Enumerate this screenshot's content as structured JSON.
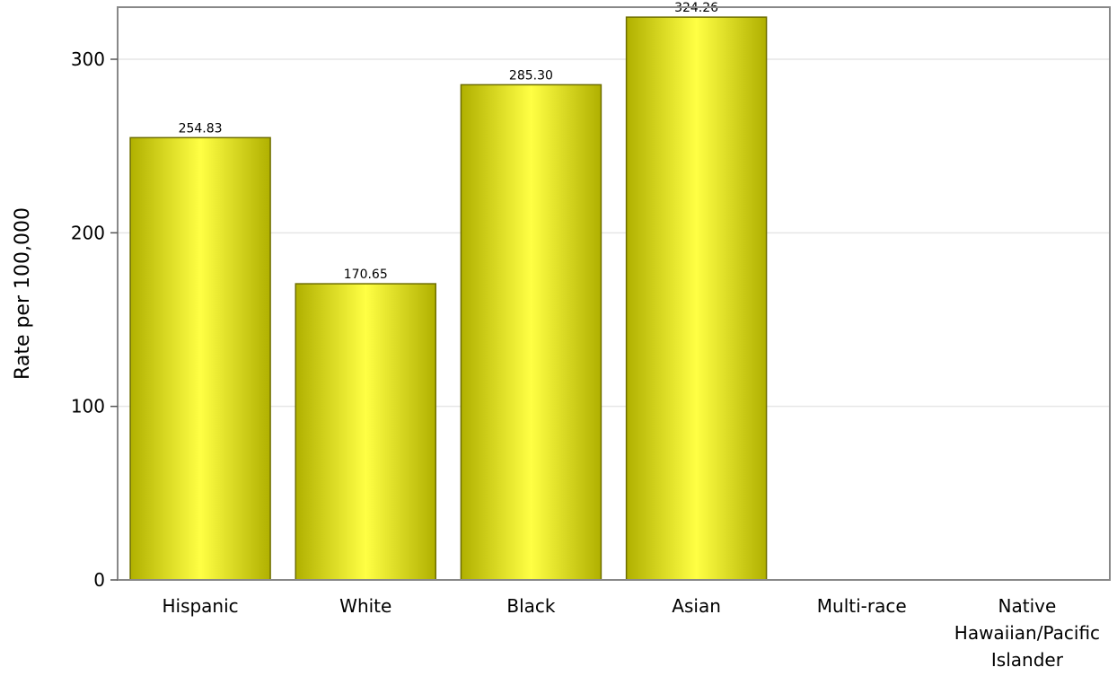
{
  "chart_data": {
    "type": "bar",
    "title": "",
    "xlabel": "",
    "ylabel": "Rate per 100,000",
    "ylim": [
      0,
      330
    ],
    "yticks": [
      "0",
      "100",
      "200",
      "300"
    ],
    "categories": [
      [
        "Hispanic"
      ],
      [
        "White"
      ],
      [
        "Black"
      ],
      [
        "Asian"
      ],
      [
        "Multi-race"
      ],
      [
        "Native",
        "Hawaiian/Pacific",
        "Islander"
      ]
    ],
    "values": [
      254.83,
      170.65,
      285.3,
      324.26,
      null,
      null
    ],
    "value_labels": [
      "254.83",
      "170.65",
      "285.30",
      "324.26",
      "",
      ""
    ],
    "grid": true,
    "colors": {
      "bar_light": "#ffff44",
      "bar_dark": "#b0b000",
      "bar_edge": "#6e6e00",
      "grid": "#e6e6e6",
      "frame": "#888888"
    }
  }
}
